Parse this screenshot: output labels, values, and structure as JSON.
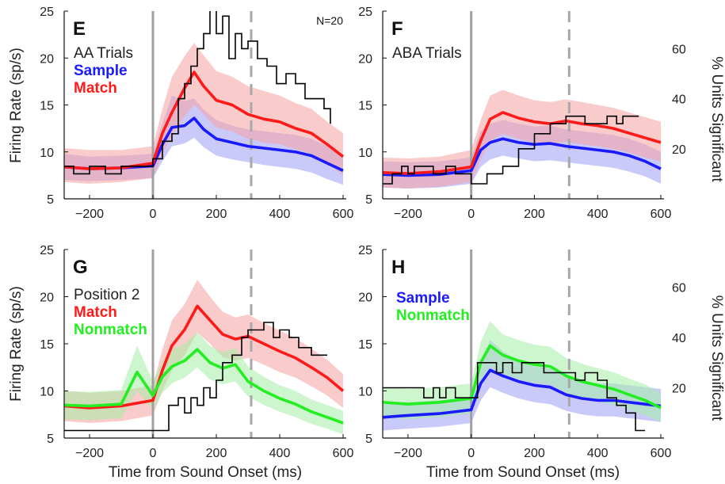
{
  "figure": {
    "left_ylabel": "Firing Rate (sp/s)",
    "right_ylabel": "% Units Significant",
    "xlabel": "Time from Sound Onset (ms)"
  },
  "colors": {
    "sample": "#1a1aff",
    "match": "#ff1a1a",
    "nonmatch": "#22ee22",
    "significant": "#000000",
    "sample_band": "#9c9cf5",
    "match_band": "#f5a0a0",
    "nonmatch_band": "#a5eea5"
  },
  "chart_data": [
    {
      "type": "line",
      "panel": "E",
      "annotation": "N=20",
      "legend_entries": [
        "AA Trials",
        "Sample",
        "Match"
      ],
      "legend_placement": "top-left",
      "xlim": [
        -280,
        610
      ],
      "ylim": [
        5,
        25
      ],
      "xticks": [
        -200,
        0,
        200,
        400,
        600
      ],
      "yticks": [
        5,
        10,
        15,
        20,
        25
      ],
      "right_ylim": [
        0,
        75
      ],
      "right_yticks": [
        20,
        40,
        60
      ],
      "vlines": [
        {
          "x": 0,
          "style": "solid"
        },
        {
          "x": 310,
          "style": "dashed"
        }
      ],
      "series": [
        {
          "name": "Sample",
          "color_key": "sample",
          "axis": "left",
          "x": [
            -280,
            -200,
            -100,
            0,
            30,
            60,
            100,
            130,
            160,
            200,
            250,
            300,
            350,
            400,
            450,
            500,
            550,
            600
          ],
          "y": [
            8.4,
            8.2,
            8.3,
            8.5,
            10.8,
            12.6,
            12.8,
            13.6,
            12.4,
            11.4,
            11.0,
            10.6,
            10.4,
            10.2,
            10.0,
            9.6,
            8.8,
            8.0
          ],
          "band_low": [
            7.0,
            6.9,
            7.0,
            7.2,
            9.0,
            10.6,
            10.9,
            11.5,
            10.5,
            9.6,
            9.2,
            8.9,
            8.6,
            8.4,
            8.2,
            7.8,
            7.1,
            6.5
          ],
          "band_high": [
            9.8,
            9.5,
            9.6,
            9.8,
            13.0,
            16.0,
            15.4,
            15.7,
            14.5,
            13.4,
            12.8,
            12.4,
            12.2,
            12.0,
            11.8,
            11.4,
            10.6,
            9.5
          ]
        },
        {
          "name": "Match",
          "color_key": "match",
          "axis": "left",
          "x": [
            -280,
            -200,
            -100,
            0,
            30,
            60,
            100,
            130,
            160,
            200,
            250,
            300,
            350,
            400,
            450,
            500,
            550,
            600
          ],
          "y": [
            8.4,
            8.2,
            8.3,
            8.8,
            12.0,
            14.2,
            16.8,
            18.5,
            17.0,
            15.5,
            15.0,
            14.0,
            13.5,
            13.2,
            12.5,
            12.0,
            10.8,
            9.5
          ],
          "band_low": [
            6.8,
            6.6,
            6.8,
            7.2,
            9.8,
            11.8,
            13.8,
            15.0,
            14.0,
            12.6,
            12.2,
            11.4,
            11.0,
            10.8,
            10.3,
            9.8,
            8.8,
            7.5
          ],
          "band_high": [
            10.4,
            10.2,
            10.2,
            10.6,
            14.6,
            18.0,
            20.2,
            21.6,
            20.3,
            18.6,
            18.0,
            17.0,
            16.5,
            16.0,
            15.2,
            14.6,
            13.2,
            12.0
          ]
        },
        {
          "name": "",
          "color_key": "significant",
          "axis": "right",
          "step": true,
          "x": [
            -280,
            -250,
            -220,
            -200,
            -150,
            -100,
            -50,
            0,
            30,
            60,
            80,
            100,
            120,
            140,
            160,
            180,
            200,
            220,
            240,
            260,
            280,
            300,
            330,
            360,
            390,
            420,
            450,
            480,
            510,
            540,
            560
          ],
          "y": [
            13,
            10,
            10,
            13,
            10,
            13,
            13,
            16,
            23,
            26,
            40,
            46,
            53,
            60,
            66,
            76,
            66,
            73,
            56,
            66,
            60,
            63,
            56,
            53,
            46,
            50,
            46,
            40,
            40,
            36,
            30
          ]
        }
      ]
    },
    {
      "type": "line",
      "panel": "F",
      "legend_entries": [
        "ABA Trials"
      ],
      "legend_placement": "top-left",
      "xlim": [
        -280,
        610
      ],
      "ylim": [
        5,
        25
      ],
      "xticks": [
        -200,
        0,
        200,
        400,
        600
      ],
      "yticks": [
        5,
        10,
        15,
        20,
        25
      ],
      "right_ylim": [
        0,
        75
      ],
      "right_yticks": [
        20,
        40,
        60
      ],
      "right_ylabel": "% Units Significant",
      "vlines": [
        {
          "x": 0,
          "style": "solid"
        },
        {
          "x": 310,
          "style": "dashed"
        }
      ],
      "series": [
        {
          "name": "Sample",
          "color_key": "sample",
          "axis": "left",
          "x": [
            -280,
            -200,
            -100,
            0,
            30,
            60,
            100,
            150,
            200,
            250,
            300,
            350,
            400,
            450,
            500,
            550,
            600
          ],
          "y": [
            7.6,
            7.5,
            7.6,
            8.0,
            10.2,
            11.0,
            11.4,
            11.0,
            10.8,
            10.9,
            10.6,
            10.4,
            10.2,
            10.0,
            9.6,
            9.0,
            8.2
          ],
          "band_low": [
            6.2,
            6.1,
            6.2,
            6.6,
            8.4,
            9.2,
            9.6,
            9.3,
            9.0,
            9.1,
            8.9,
            8.7,
            8.5,
            8.3,
            7.9,
            7.4,
            6.6
          ],
          "band_high": [
            9.0,
            8.9,
            9.0,
            9.4,
            12.2,
            13.0,
            13.4,
            13.0,
            12.7,
            12.8,
            12.4,
            12.2,
            12.0,
            11.8,
            11.4,
            10.8,
            10.0
          ]
        },
        {
          "name": "Match",
          "color_key": "match",
          "axis": "left",
          "x": [
            -280,
            -200,
            -100,
            0,
            30,
            60,
            100,
            150,
            200,
            250,
            300,
            350,
            400,
            450,
            500,
            550,
            600
          ],
          "y": [
            7.8,
            7.7,
            7.9,
            8.4,
            11.2,
            13.5,
            14.2,
            13.6,
            13.2,
            13.0,
            13.3,
            13.0,
            12.8,
            12.5,
            12.0,
            11.5,
            11.0
          ],
          "band_low": [
            6.2,
            6.1,
            6.3,
            6.8,
            9.2,
            11.2,
            11.9,
            11.4,
            11.0,
            10.8,
            11.1,
            10.8,
            10.6,
            10.3,
            9.9,
            9.4,
            9.0
          ],
          "band_high": [
            9.4,
            9.3,
            9.5,
            10.2,
            13.4,
            16.0,
            16.6,
            16.0,
            15.5,
            15.3,
            15.6,
            15.3,
            15.0,
            14.7,
            14.2,
            13.7,
            13.2
          ]
        },
        {
          "name": "",
          "color_key": "significant",
          "axis": "right",
          "step": true,
          "x": [
            -280,
            -250,
            -220,
            -200,
            -180,
            -150,
            -120,
            -100,
            -80,
            -50,
            -20,
            0,
            50,
            100,
            150,
            200,
            220,
            250,
            280,
            300,
            330,
            360,
            400,
            430,
            460,
            480,
            500,
            530
          ],
          "y": [
            6,
            10,
            13,
            10,
            13,
            13,
            10,
            10,
            13,
            10,
            10,
            6,
            10,
            13,
            20,
            26,
            26,
            30,
            30,
            33,
            33,
            30,
            30,
            33,
            30,
            33,
            33,
            33
          ]
        }
      ]
    },
    {
      "type": "line",
      "panel": "G",
      "legend_entries": [
        "Position 2",
        "Match",
        "Nonmatch"
      ],
      "legend_placement": "top-left",
      "xlim": [
        -280,
        610
      ],
      "ylim": [
        5,
        25
      ],
      "xticks": [
        -200,
        0,
        200,
        400,
        600
      ],
      "yticks": [
        5,
        10,
        15,
        20,
        25
      ],
      "right_ylim": [
        0,
        75
      ],
      "right_yticks": [
        20,
        40,
        60
      ],
      "vlines": [
        {
          "x": 0,
          "style": "solid"
        },
        {
          "x": 310,
          "style": "dashed"
        }
      ],
      "series": [
        {
          "name": "Match",
          "color_key": "match",
          "axis": "left",
          "x": [
            -280,
            -200,
            -100,
            0,
            30,
            60,
            100,
            140,
            180,
            220,
            260,
            300,
            350,
            400,
            450,
            500,
            550,
            600
          ],
          "y": [
            8.4,
            8.2,
            8.4,
            9.0,
            12.2,
            14.8,
            16.5,
            19.0,
            17.5,
            16.0,
            15.5,
            15.8,
            15.0,
            14.2,
            13.5,
            12.5,
            11.4,
            10.0
          ],
          "band_low": [
            6.8,
            6.6,
            6.8,
            7.4,
            10.0,
            12.2,
            13.8,
            16.2,
            15.0,
            13.6,
            13.2,
            13.5,
            12.8,
            12.0,
            11.4,
            10.5,
            9.5,
            8.2
          ],
          "band_high": [
            10.0,
            9.8,
            10.0,
            10.6,
            14.4,
            17.5,
            19.2,
            21.8,
            20.0,
            18.4,
            17.8,
            18.1,
            17.2,
            16.4,
            15.6,
            14.5,
            13.3,
            11.8
          ]
        },
        {
          "name": "Nonmatch",
          "color_key": "nonmatch",
          "axis": "left",
          "x": [
            -280,
            -200,
            -100,
            -50,
            0,
            30,
            60,
            100,
            140,
            180,
            220,
            260,
            300,
            350,
            400,
            450,
            500,
            550,
            600
          ],
          "y": [
            8.5,
            8.4,
            8.6,
            12.0,
            9.5,
            11.5,
            12.6,
            13.2,
            14.4,
            13.0,
            12.4,
            12.8,
            11.0,
            10.0,
            9.2,
            8.6,
            7.8,
            7.2,
            6.6
          ],
          "band_low": [
            7.0,
            6.9,
            7.1,
            10.0,
            8.0,
            9.8,
            10.8,
            11.4,
            12.5,
            11.2,
            10.7,
            11.0,
            9.4,
            8.5,
            7.8,
            7.2,
            6.5,
            6.0,
            5.4
          ],
          "band_high": [
            10.0,
            9.9,
            10.1,
            14.8,
            11.0,
            13.2,
            14.4,
            15.0,
            16.2,
            14.8,
            14.1,
            14.6,
            12.6,
            11.5,
            10.6,
            10.0,
            9.1,
            8.5,
            7.9
          ]
        },
        {
          "name": "",
          "color_key": "significant",
          "axis": "right",
          "step": true,
          "x": [
            -280,
            -100,
            0,
            20,
            50,
            80,
            100,
            120,
            140,
            160,
            180,
            200,
            220,
            250,
            280,
            300,
            320,
            350,
            380,
            400,
            430,
            460,
            500,
            550
          ],
          "y": [
            3,
            3,
            3,
            3,
            13,
            16,
            10,
            16,
            13,
            20,
            16,
            23,
            30,
            33,
            40,
            43,
            43,
            46,
            40,
            43,
            40,
            36,
            33,
            33
          ]
        }
      ]
    },
    {
      "type": "line",
      "panel": "H",
      "legend_entries": [
        "Sample",
        "Nonmatch"
      ],
      "legend_placement": "top-left",
      "xlim": [
        -280,
        610
      ],
      "ylim": [
        5,
        25
      ],
      "xticks": [
        -200,
        0,
        200,
        400,
        600
      ],
      "yticks": [
        5,
        10,
        15,
        20,
        25
      ],
      "right_ylim": [
        0,
        75
      ],
      "right_yticks": [
        20,
        40,
        60
      ],
      "right_ylabel": "% Units Significant",
      "vlines": [
        {
          "x": 0,
          "style": "solid"
        },
        {
          "x": 310,
          "style": "dashed"
        }
      ],
      "series": [
        {
          "name": "Sample",
          "color_key": "sample",
          "axis": "left",
          "x": [
            -280,
            -200,
            -100,
            0,
            30,
            60,
            100,
            150,
            200,
            250,
            300,
            350,
            400,
            450,
            500,
            550,
            600
          ],
          "y": [
            7.2,
            7.4,
            7.6,
            8.0,
            10.8,
            12.2,
            11.6,
            11.0,
            10.6,
            10.4,
            9.6,
            9.2,
            9.0,
            9.0,
            8.8,
            8.6,
            8.4
          ],
          "band_low": [
            5.8,
            6.0,
            6.2,
            6.6,
            9.0,
            10.4,
            9.8,
            9.2,
            8.8,
            8.6,
            7.9,
            7.5,
            7.3,
            7.3,
            7.1,
            6.9,
            6.7
          ],
          "band_high": [
            8.6,
            8.8,
            9.0,
            9.4,
            12.8,
            15.4,
            14.2,
            13.2,
            12.6,
            12.4,
            11.4,
            11.0,
            10.8,
            10.8,
            10.6,
            10.4,
            10.2
          ]
        },
        {
          "name": "Nonmatch",
          "color_key": "nonmatch",
          "axis": "left",
          "x": [
            -280,
            -200,
            -100,
            0,
            30,
            60,
            100,
            150,
            200,
            250,
            300,
            350,
            400,
            450,
            500,
            550,
            600
          ],
          "y": [
            8.8,
            8.6,
            8.8,
            9.2,
            13.0,
            14.8,
            13.8,
            13.2,
            12.8,
            12.6,
            11.6,
            11.0,
            10.6,
            10.2,
            9.6,
            9.0,
            8.2
          ],
          "band_low": [
            7.2,
            7.0,
            7.2,
            7.6,
            11.0,
            12.6,
            11.8,
            11.2,
            10.9,
            10.7,
            9.8,
            9.2,
            8.9,
            8.5,
            8.0,
            7.4,
            6.7
          ],
          "band_high": [
            10.4,
            10.2,
            10.4,
            10.8,
            15.2,
            17.4,
            16.0,
            15.4,
            14.9,
            14.7,
            13.5,
            12.9,
            12.4,
            12.0,
            11.3,
            10.7,
            9.8
          ]
        },
        {
          "name": "",
          "color_key": "significant",
          "axis": "right",
          "step": true,
          "x": [
            -280,
            -200,
            -150,
            -120,
            -100,
            -80,
            -50,
            0,
            20,
            50,
            80,
            100,
            130,
            160,
            200,
            230,
            260,
            300,
            330,
            360,
            400,
            430,
            460,
            490,
            520,
            550
          ],
          "y": [
            20,
            20,
            16,
            20,
            16,
            20,
            16,
            16,
            30,
            30,
            26,
            30,
            26,
            30,
            30,
            26,
            26,
            26,
            23,
            26,
            23,
            16,
            13,
            10,
            3,
            3
          ]
        }
      ]
    }
  ]
}
